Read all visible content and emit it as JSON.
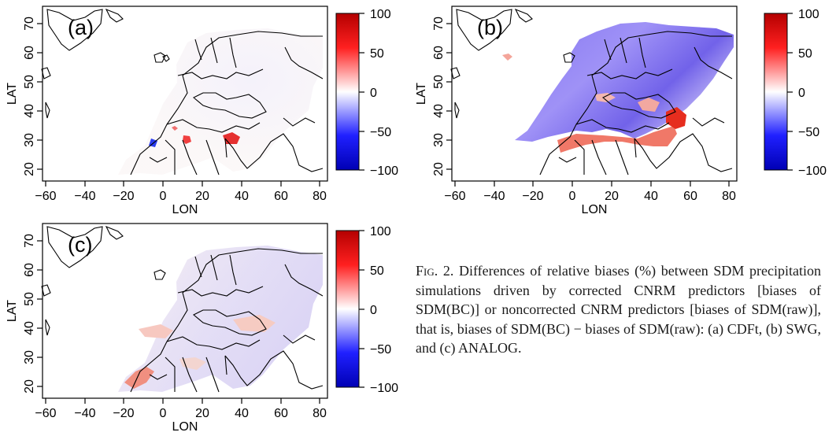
{
  "panels": [
    {
      "id": "a",
      "tag": "(a)",
      "ylabel": "LAT",
      "xlabel": "LON",
      "x_ticks": [
        "−60",
        "−40",
        "−20",
        "0",
        "20",
        "40",
        "60",
        "80"
      ],
      "y_ticks": [
        "20",
        "30",
        "40",
        "50",
        "60",
        "70"
      ],
      "colorbar_ticks": [
        "100",
        "50",
        "0",
        "−50",
        "−100"
      ]
    },
    {
      "id": "b",
      "tag": "(b)",
      "ylabel": "LAT",
      "xlabel": "LON",
      "x_ticks": [
        "−60",
        "−40",
        "−20",
        "0",
        "20",
        "40",
        "60",
        "80"
      ],
      "y_ticks": [
        "20",
        "30",
        "40",
        "50",
        "60",
        "70"
      ],
      "colorbar_ticks": [
        "100",
        "50",
        "0",
        "−50",
        "−100"
      ]
    },
    {
      "id": "c",
      "tag": "(c)",
      "ylabel": "LAT",
      "xlabel": "LON",
      "x_ticks": [
        "−60",
        "−40",
        "−20",
        "0",
        "20",
        "40",
        "60",
        "80"
      ],
      "y_ticks": [
        "20",
        "30",
        "40",
        "50",
        "60",
        "70"
      ],
      "colorbar_ticks": [
        "100",
        "50",
        "0",
        "−50",
        "−100"
      ]
    }
  ],
  "colorbar_palette": [
    "#0000b4",
    "#3c3cff",
    "#ffffff",
    "#ff3c3c",
    "#b40000"
  ],
  "caption": {
    "label": "Fig. 2.",
    "text": " Differences of relative biases (%) between SDM precipitation simulations driven by corrected CNRM predictors [biases of SDM(BC)] or noncorrected CNRM predictors [biases of SDM(raw)], that is, biases of SDM(BC) − biases of SDM(raw): (a) CDFt, (b) SWG, and (c) ANALOG."
  }
}
